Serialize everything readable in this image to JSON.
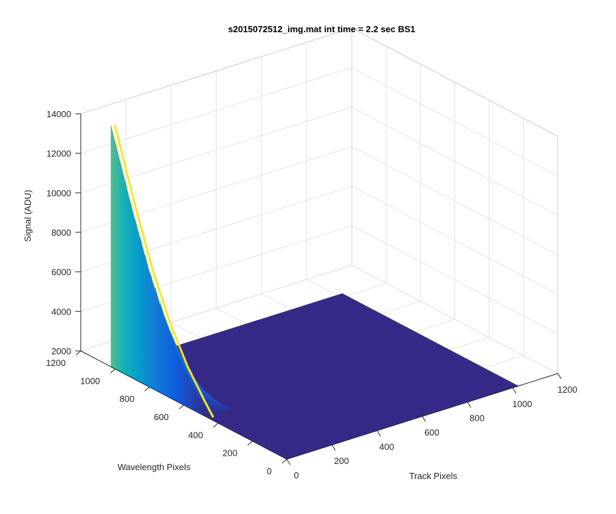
{
  "chart_data": {
    "type": "surface",
    "title": "s2015072512_img.mat int time = 2.2 sec   BS1",
    "xlabel": "Track Pixels",
    "ylabel": "Wavelength Pixels",
    "zlabel": "Signal (ADU)",
    "xlim": [
      0,
      1200
    ],
    "ylim": [
      0,
      1200
    ],
    "zlim": [
      2000,
      14000
    ],
    "xticks": [
      "0",
      "200",
      "400",
      "600",
      "800",
      "1000",
      "1200"
    ],
    "yticks": [
      "0",
      "200",
      "400",
      "600",
      "800",
      "1000",
      "1200"
    ],
    "zticks": [
      "2000",
      "4000",
      "6000",
      "8000",
      "10000",
      "12000",
      "14000"
    ],
    "grid": true,
    "colormap": "parula",
    "colors": {
      "floor": "#352a87",
      "peak": "#f9fb0e"
    },
    "surface_extent": {
      "track": [
        0,
        1024
      ],
      "wavelength": [
        0,
        1024
      ]
    },
    "baseline_signal": 2000,
    "feature": {
      "description_track_center": 0,
      "peak_signal": 14200,
      "peak_wavelength": 1024,
      "signal_at_wavelength": [
        {
          "wavelength": 1024,
          "signal": 14200
        },
        {
          "wavelength": 900,
          "signal": 10500
        },
        {
          "wavelength": 800,
          "signal": 7800
        },
        {
          "wavelength": 700,
          "signal": 5600
        },
        {
          "wavelength": 600,
          "signal": 3900
        },
        {
          "wavelength": 500,
          "signal": 2600
        },
        {
          "wavelength": 450,
          "signal": 2000
        }
      ],
      "track_width": 110
    }
  }
}
